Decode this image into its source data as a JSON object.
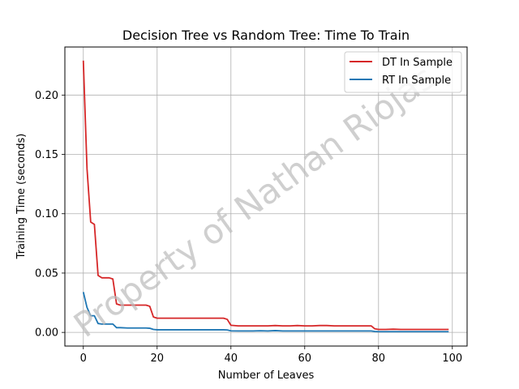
{
  "chart_data": {
    "type": "line",
    "title": "Decision Tree vs Random Tree: Time To Train",
    "xlabel": "Number of Leaves",
    "ylabel": "Training Time (seconds)",
    "xlim": [
      -5,
      104
    ],
    "ylim": [
      -0.0115,
      0.2405
    ],
    "xticks": [
      0,
      20,
      40,
      60,
      80,
      100
    ],
    "yticks": [
      0.0,
      0.05,
      0.1,
      0.15,
      0.2
    ],
    "ytick_labels": [
      "0.00",
      "0.05",
      "0.10",
      "0.15",
      "0.20"
    ],
    "grid": true,
    "legend_position": "top-right",
    "watermark": "Property of Nathan Riojas",
    "series": [
      {
        "name": "DT In Sample",
        "color": "#d62728",
        "x": [
          0,
          1,
          2,
          3,
          4,
          5,
          6,
          7,
          8,
          9,
          10,
          12,
          14,
          16,
          17,
          18,
          19,
          20,
          22,
          24,
          26,
          28,
          30,
          32,
          34,
          36,
          38,
          39,
          40,
          42,
          44,
          46,
          48,
          50,
          52,
          54,
          56,
          58,
          60,
          62,
          64,
          66,
          68,
          70,
          72,
          74,
          76,
          78,
          79,
          80,
          82,
          84,
          86,
          88,
          90,
          92,
          94,
          96,
          98,
          99
        ],
        "values": [
          0.229,
          0.138,
          0.093,
          0.091,
          0.048,
          0.046,
          0.046,
          0.046,
          0.045,
          0.024,
          0.023,
          0.023,
          0.023,
          0.023,
          0.023,
          0.022,
          0.013,
          0.012,
          0.012,
          0.012,
          0.012,
          0.012,
          0.012,
          0.012,
          0.012,
          0.012,
          0.012,
          0.011,
          0.006,
          0.0055,
          0.0055,
          0.0055,
          0.0055,
          0.0055,
          0.0058,
          0.0055,
          0.0055,
          0.0058,
          0.0055,
          0.0055,
          0.0058,
          0.0058,
          0.0055,
          0.0055,
          0.0055,
          0.0055,
          0.0055,
          0.0055,
          0.003,
          0.0025,
          0.0025,
          0.0027,
          0.0025,
          0.0025,
          0.0025,
          0.0025,
          0.0025,
          0.0025,
          0.0025,
          0.0025
        ]
      },
      {
        "name": "RT In Sample",
        "color": "#1f77b4",
        "x": [
          0,
          1,
          2,
          3,
          4,
          5,
          6,
          7,
          8,
          9,
          10,
          12,
          14,
          16,
          17,
          18,
          19,
          20,
          22,
          24,
          26,
          28,
          30,
          32,
          34,
          36,
          38,
          39,
          40,
          42,
          44,
          46,
          48,
          50,
          52,
          54,
          56,
          58,
          60,
          62,
          64,
          66,
          68,
          70,
          72,
          74,
          76,
          78,
          79,
          80,
          82,
          84,
          86,
          88,
          90,
          92,
          94,
          96,
          98,
          99
        ],
        "values": [
          0.034,
          0.021,
          0.014,
          0.014,
          0.0075,
          0.007,
          0.007,
          0.007,
          0.007,
          0.004,
          0.004,
          0.0037,
          0.0037,
          0.0037,
          0.0037,
          0.0035,
          0.0025,
          0.0022,
          0.0022,
          0.0022,
          0.0022,
          0.0022,
          0.0022,
          0.0022,
          0.0022,
          0.0022,
          0.0022,
          0.0021,
          0.0013,
          0.0012,
          0.0012,
          0.0012,
          0.0014,
          0.0012,
          0.0015,
          0.0012,
          0.0012,
          0.0012,
          0.0012,
          0.0012,
          0.0012,
          0.0012,
          0.0012,
          0.0012,
          0.0012,
          0.0012,
          0.0012,
          0.0012,
          0.0008,
          0.0006,
          0.0006,
          0.0006,
          0.0006,
          0.0006,
          0.0006,
          0.0006,
          0.0006,
          0.0006,
          0.0006,
          0.0006
        ]
      }
    ]
  }
}
